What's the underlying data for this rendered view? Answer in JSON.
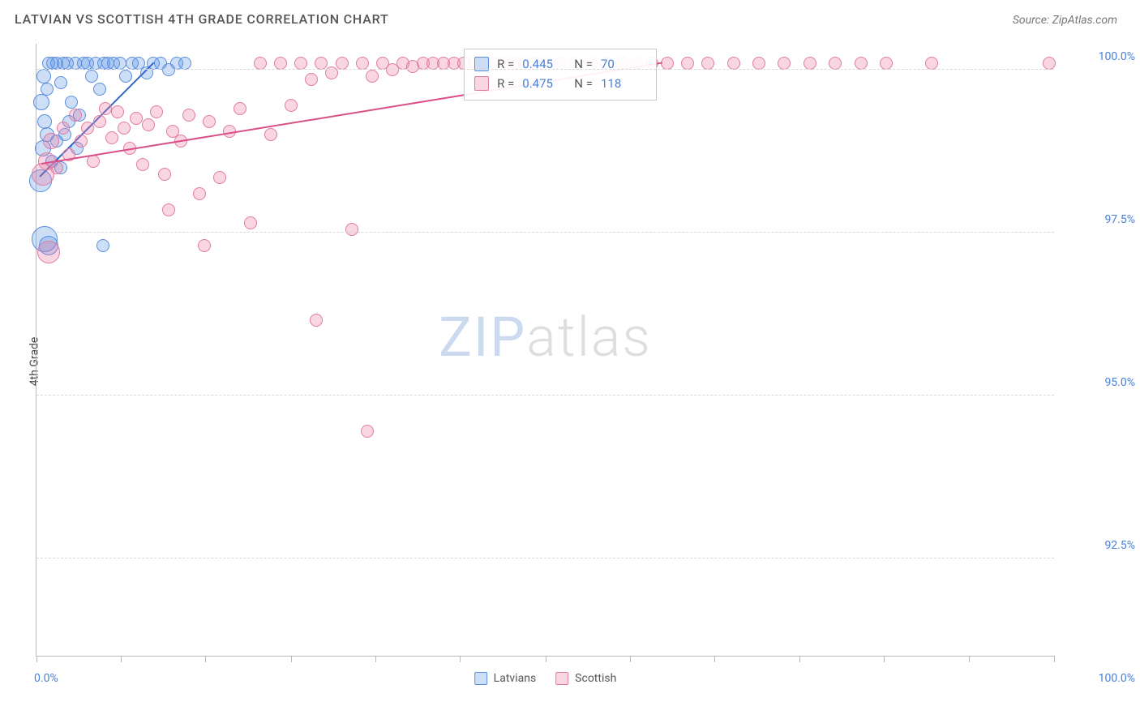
{
  "title": "LATVIAN VS SCOTTISH 4TH GRADE CORRELATION CHART",
  "source_prefix": "Source: ",
  "source_name": "ZipAtlas.com",
  "y_axis_label": "4th Grade",
  "watermark": {
    "left": "ZIP",
    "right": "atlas"
  },
  "chart": {
    "type": "scatter",
    "xlim": [
      0,
      100
    ],
    "ylim": [
      91.0,
      100.4
    ],
    "x_tick_positions": [
      0,
      8.3,
      16.6,
      25,
      33.3,
      41.6,
      50,
      58.3,
      66.6,
      75,
      83.3,
      91.6,
      100
    ],
    "x_min_label": "0.0%",
    "x_max_label": "100.0%",
    "y_ticks": [
      {
        "v": 92.5,
        "label": "92.5%"
      },
      {
        "v": 95.0,
        "label": "95.0%"
      },
      {
        "v": 97.5,
        "label": "97.5%"
      },
      {
        "v": 100.0,
        "label": "100.0%"
      }
    ],
    "grid_color": "#d8d8d8",
    "axis_color": "#b9b9b9",
    "tick_label_color": "#4a80d6",
    "background_color": "#ffffff",
    "default_radius": 8,
    "series": [
      {
        "id": "latvians",
        "name": "Latvians",
        "fill": "rgba(90,150,230,0.30)",
        "stroke": "#5a8de0",
        "trend": {
          "x0": 0.3,
          "y0": 98.35,
          "x1": 11.5,
          "y1": 100.1,
          "color": "#2f66c9",
          "width": 2
        },
        "points": [
          {
            "x": 0.4,
            "y": 98.3,
            "r": 14
          },
          {
            "x": 0.6,
            "y": 98.8,
            "r": 10
          },
          {
            "x": 0.8,
            "y": 99.2,
            "r": 9
          },
          {
            "x": 1.0,
            "y": 99.7,
            "r": 8
          },
          {
            "x": 1.2,
            "y": 100.1,
            "r": 8
          },
          {
            "x": 1.6,
            "y": 100.1,
            "r": 8
          },
          {
            "x": 2.0,
            "y": 100.1,
            "r": 8
          },
          {
            "x": 2.4,
            "y": 99.8,
            "r": 8
          },
          {
            "x": 2.6,
            "y": 100.1,
            "r": 8
          },
          {
            "x": 3.0,
            "y": 100.1,
            "r": 8
          },
          {
            "x": 3.4,
            "y": 99.5,
            "r": 8
          },
          {
            "x": 3.8,
            "y": 100.1,
            "r": 8
          },
          {
            "x": 4.2,
            "y": 99.3,
            "r": 8
          },
          {
            "x": 4.6,
            "y": 100.1,
            "r": 8
          },
          {
            "x": 5.0,
            "y": 100.1,
            "r": 8
          },
          {
            "x": 5.4,
            "y": 99.9,
            "r": 8
          },
          {
            "x": 5.8,
            "y": 100.1,
            "r": 8
          },
          {
            "x": 6.2,
            "y": 99.7,
            "r": 8
          },
          {
            "x": 6.6,
            "y": 100.1,
            "r": 8
          },
          {
            "x": 7.0,
            "y": 100.1,
            "r": 8
          },
          {
            "x": 7.6,
            "y": 100.1,
            "r": 8
          },
          {
            "x": 8.2,
            "y": 100.1,
            "r": 8
          },
          {
            "x": 8.8,
            "y": 99.9,
            "r": 8
          },
          {
            "x": 9.4,
            "y": 100.1,
            "r": 8
          },
          {
            "x": 10.0,
            "y": 100.1,
            "r": 8
          },
          {
            "x": 10.8,
            "y": 99.95,
            "r": 8
          },
          {
            "x": 11.5,
            "y": 100.1,
            "r": 8
          },
          {
            "x": 12.2,
            "y": 100.1,
            "r": 8
          },
          {
            "x": 13.0,
            "y": 100.0,
            "r": 8
          },
          {
            "x": 13.8,
            "y": 100.1,
            "r": 8
          },
          {
            "x": 14.6,
            "y": 100.1,
            "r": 8
          },
          {
            "x": 0.8,
            "y": 97.4,
            "r": 16
          },
          {
            "x": 1.2,
            "y": 97.3,
            "r": 12
          },
          {
            "x": 1.0,
            "y": 99.0,
            "r": 9
          },
          {
            "x": 1.5,
            "y": 98.6,
            "r": 8
          },
          {
            "x": 2.0,
            "y": 98.9,
            "r": 8
          },
          {
            "x": 2.4,
            "y": 98.5,
            "r": 8
          },
          {
            "x": 2.8,
            "y": 99.0,
            "r": 8
          },
          {
            "x": 3.2,
            "y": 99.2,
            "r": 8
          },
          {
            "x": 0.5,
            "y": 99.5,
            "r": 10
          },
          {
            "x": 0.7,
            "y": 99.9,
            "r": 9
          },
          {
            "x": 4.0,
            "y": 98.8,
            "r": 8
          },
          {
            "x": 6.5,
            "y": 97.3,
            "r": 8
          }
        ]
      },
      {
        "id": "scottish",
        "name": "Scottish",
        "fill": "rgba(235,120,160,0.30)",
        "stroke": "#e07ba0",
        "trend": {
          "x0": 0.5,
          "y0": 98.55,
          "x1": 61.5,
          "y1": 100.1,
          "color": "#d94f87",
          "width": 2
        },
        "points": [
          {
            "x": 0.6,
            "y": 98.4,
            "r": 14
          },
          {
            "x": 1.0,
            "y": 98.6,
            "r": 11
          },
          {
            "x": 1.4,
            "y": 98.9,
            "r": 10
          },
          {
            "x": 1.2,
            "y": 97.2,
            "r": 14
          },
          {
            "x": 2.0,
            "y": 98.5,
            "r": 8
          },
          {
            "x": 2.6,
            "y": 99.1,
            "r": 8
          },
          {
            "x": 3.2,
            "y": 98.7,
            "r": 8
          },
          {
            "x": 3.8,
            "y": 99.3,
            "r": 8
          },
          {
            "x": 4.4,
            "y": 98.9,
            "r": 8
          },
          {
            "x": 5.0,
            "y": 99.1,
            "r": 8
          },
          {
            "x": 5.6,
            "y": 98.6,
            "r": 8
          },
          {
            "x": 6.2,
            "y": 99.2,
            "r": 8
          },
          {
            "x": 6.8,
            "y": 99.4,
            "r": 8
          },
          {
            "x": 7.4,
            "y": 98.95,
            "r": 8
          },
          {
            "x": 8.0,
            "y": 99.35,
            "r": 8
          },
          {
            "x": 8.6,
            "y": 99.1,
            "r": 8
          },
          {
            "x": 9.2,
            "y": 98.8,
            "r": 8
          },
          {
            "x": 9.8,
            "y": 99.25,
            "r": 8
          },
          {
            "x": 10.4,
            "y": 98.55,
            "r": 8
          },
          {
            "x": 11.0,
            "y": 99.15,
            "r": 8
          },
          {
            "x": 11.8,
            "y": 99.35,
            "r": 8
          },
          {
            "x": 12.6,
            "y": 98.4,
            "r": 8
          },
          {
            "x": 13.4,
            "y": 99.05,
            "r": 8
          },
          {
            "x": 14.2,
            "y": 98.9,
            "r": 8
          },
          {
            "x": 15.0,
            "y": 99.3,
            "r": 8
          },
          {
            "x": 16.0,
            "y": 98.1,
            "r": 8
          },
          {
            "x": 13.0,
            "y": 97.85,
            "r": 8
          },
          {
            "x": 17.0,
            "y": 99.2,
            "r": 8
          },
          {
            "x": 18.0,
            "y": 98.35,
            "r": 8
          },
          {
            "x": 19.0,
            "y": 99.05,
            "r": 8
          },
          {
            "x": 16.5,
            "y": 97.3,
            "r": 8
          },
          {
            "x": 20.0,
            "y": 99.4,
            "r": 8
          },
          {
            "x": 21.0,
            "y": 97.65,
            "r": 8
          },
          {
            "x": 22.0,
            "y": 100.1,
            "r": 8
          },
          {
            "x": 23.0,
            "y": 99.0,
            "r": 8
          },
          {
            "x": 24.0,
            "y": 100.1,
            "r": 8
          },
          {
            "x": 25.0,
            "y": 99.45,
            "r": 8
          },
          {
            "x": 26.0,
            "y": 100.1,
            "r": 8
          },
          {
            "x": 27.0,
            "y": 99.85,
            "r": 8
          },
          {
            "x": 28.0,
            "y": 100.1,
            "r": 8
          },
          {
            "x": 29.0,
            "y": 99.95,
            "r": 8
          },
          {
            "x": 30.0,
            "y": 100.1,
            "r": 8
          },
          {
            "x": 31.0,
            "y": 97.55,
            "r": 8
          },
          {
            "x": 32.0,
            "y": 100.1,
            "r": 8
          },
          {
            "x": 33.0,
            "y": 99.9,
            "r": 8
          },
          {
            "x": 34.0,
            "y": 100.1,
            "r": 8
          },
          {
            "x": 35.0,
            "y": 100.0,
            "r": 8
          },
          {
            "x": 36.0,
            "y": 100.1,
            "r": 8
          },
          {
            "x": 37.0,
            "y": 100.05,
            "r": 8
          },
          {
            "x": 38.0,
            "y": 100.1,
            "r": 8
          },
          {
            "x": 39.0,
            "y": 100.1,
            "r": 8
          },
          {
            "x": 40.0,
            "y": 100.1,
            "r": 8
          },
          {
            "x": 41.0,
            "y": 100.1,
            "r": 8
          },
          {
            "x": 42.0,
            "y": 100.1,
            "r": 8
          },
          {
            "x": 43.0,
            "y": 100.1,
            "r": 8
          },
          {
            "x": 44.0,
            "y": 100.1,
            "r": 8
          },
          {
            "x": 45.0,
            "y": 100.1,
            "r": 8
          },
          {
            "x": 46.0,
            "y": 100.1,
            "r": 8
          },
          {
            "x": 47.0,
            "y": 100.1,
            "r": 8
          },
          {
            "x": 48.0,
            "y": 100.1,
            "r": 8
          },
          {
            "x": 49.0,
            "y": 100.1,
            "r": 8
          },
          {
            "x": 50.0,
            "y": 100.1,
            "r": 8
          },
          {
            "x": 51.5,
            "y": 100.1,
            "r": 8
          },
          {
            "x": 53.0,
            "y": 100.1,
            "r": 8
          },
          {
            "x": 54.5,
            "y": 100.1,
            "r": 8
          },
          {
            "x": 56.0,
            "y": 100.1,
            "r": 8
          },
          {
            "x": 57.5,
            "y": 100.1,
            "r": 8
          },
          {
            "x": 59.0,
            "y": 100.1,
            "r": 8
          },
          {
            "x": 60.5,
            "y": 100.1,
            "r": 8
          },
          {
            "x": 62.0,
            "y": 100.1,
            "r": 8
          },
          {
            "x": 64.0,
            "y": 100.1,
            "r": 8
          },
          {
            "x": 66.0,
            "y": 100.1,
            "r": 8
          },
          {
            "x": 68.5,
            "y": 100.1,
            "r": 8
          },
          {
            "x": 71.0,
            "y": 100.1,
            "r": 8
          },
          {
            "x": 73.5,
            "y": 100.1,
            "r": 8
          },
          {
            "x": 76.0,
            "y": 100.1,
            "r": 8
          },
          {
            "x": 78.5,
            "y": 100.1,
            "r": 8
          },
          {
            "x": 81.0,
            "y": 100.1,
            "r": 8
          },
          {
            "x": 83.5,
            "y": 100.1,
            "r": 8
          },
          {
            "x": 88.0,
            "y": 100.1,
            "r": 8
          },
          {
            "x": 99.5,
            "y": 100.1,
            "r": 8
          },
          {
            "x": 27.5,
            "y": 96.15,
            "r": 8
          },
          {
            "x": 32.5,
            "y": 94.45,
            "r": 8
          }
        ]
      }
    ]
  },
  "stats": [
    {
      "series": "latvians",
      "r_label": "R =",
      "r": "0.445",
      "n_label": "N =",
      "n": "70"
    },
    {
      "series": "scottish",
      "r_label": "R =",
      "r": "0.475",
      "n_label": "N =",
      "n": "118"
    }
  ],
  "legend": [
    {
      "series": "latvians",
      "label": "Latvians"
    },
    {
      "series": "scottish",
      "label": "Scottish"
    }
  ]
}
